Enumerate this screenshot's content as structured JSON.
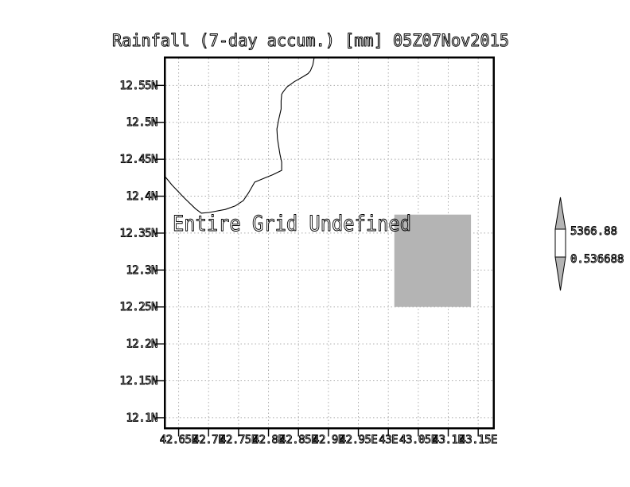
{
  "title": "Rainfall (7-day accum.) [mm] 05Z07Nov2015",
  "annotation": "Entire Grid Undefined",
  "chart_data": {
    "type": "map",
    "title": "Rainfall (7-day accum.) [mm] 05Z07Nov2015",
    "annotation": "Entire Grid Undefined",
    "grid": "dotted",
    "grid_color": "#ababab",
    "coast_color": "#000000",
    "lon_range": [
      42.628,
      43.175
    ],
    "lat_range": [
      12.087,
      12.587
    ],
    "x_ticks": [
      {
        "value": 42.65,
        "label": "42.65E"
      },
      {
        "value": 42.7,
        "label": "42.7E"
      },
      {
        "value": 42.75,
        "label": "42.75E"
      },
      {
        "value": 42.8,
        "label": "42.8E"
      },
      {
        "value": 42.85,
        "label": "42.85E"
      },
      {
        "value": 42.9,
        "label": "42.9E"
      },
      {
        "value": 42.95,
        "label": "42.95E"
      },
      {
        "value": 43.0,
        "label": "43E"
      },
      {
        "value": 43.05,
        "label": "43.05E"
      },
      {
        "value": 43.1,
        "label": "43.1E"
      },
      {
        "value": 43.15,
        "label": "43.15E"
      }
    ],
    "y_ticks": [
      {
        "value": 12.55,
        "label": "12.55N"
      },
      {
        "value": 12.5,
        "label": "12.5N"
      },
      {
        "value": 12.45,
        "label": "12.45N"
      },
      {
        "value": 12.4,
        "label": "12.4N"
      },
      {
        "value": 12.35,
        "label": "12.35N"
      },
      {
        "value": 12.3,
        "label": "12.3N"
      },
      {
        "value": 12.25,
        "label": "12.25N"
      },
      {
        "value": 12.2,
        "label": "12.2N"
      },
      {
        "value": 12.15,
        "label": "12.15N"
      },
      {
        "value": 12.1,
        "label": "12.1N"
      }
    ],
    "colorbar": {
      "min": 0.536688,
      "max": 5366.88,
      "min_label": "0.536688",
      "max_label": "5366.88",
      "arrow_color": "#b4b4b4",
      "body_color": "#ffffff"
    },
    "undefined_region": {
      "color": "#b4b4b4",
      "lon_min": 43.01,
      "lon_max": 43.138,
      "lat_min": 12.25,
      "lat_max": 12.375
    },
    "coastline": [
      [
        42.876,
        12.587
      ],
      [
        42.874,
        12.578
      ],
      [
        42.87,
        12.57
      ],
      [
        42.866,
        12.566
      ],
      [
        42.856,
        12.561
      ],
      [
        42.843,
        12.555
      ],
      [
        42.831,
        12.548
      ],
      [
        42.825,
        12.542
      ],
      [
        42.822,
        12.538
      ],
      [
        42.821,
        12.529
      ],
      [
        42.821,
        12.518
      ],
      [
        42.817,
        12.504
      ],
      [
        42.814,
        12.491
      ],
      [
        42.815,
        12.478
      ],
      [
        42.817,
        12.467
      ],
      [
        42.819,
        12.457
      ],
      [
        42.822,
        12.446
      ],
      [
        42.822,
        12.435
      ],
      [
        42.807,
        12.429
      ],
      [
        42.795,
        12.425
      ],
      [
        42.777,
        12.419
      ],
      [
        42.767,
        12.405
      ],
      [
        42.758,
        12.394
      ],
      [
        42.745,
        12.387
      ],
      [
        42.728,
        12.382
      ],
      [
        42.701,
        12.378
      ],
      [
        42.688,
        12.377
      ],
      [
        42.678,
        12.383
      ],
      [
        42.659,
        12.398
      ],
      [
        42.639,
        12.415
      ],
      [
        42.627,
        12.427
      ]
    ]
  }
}
